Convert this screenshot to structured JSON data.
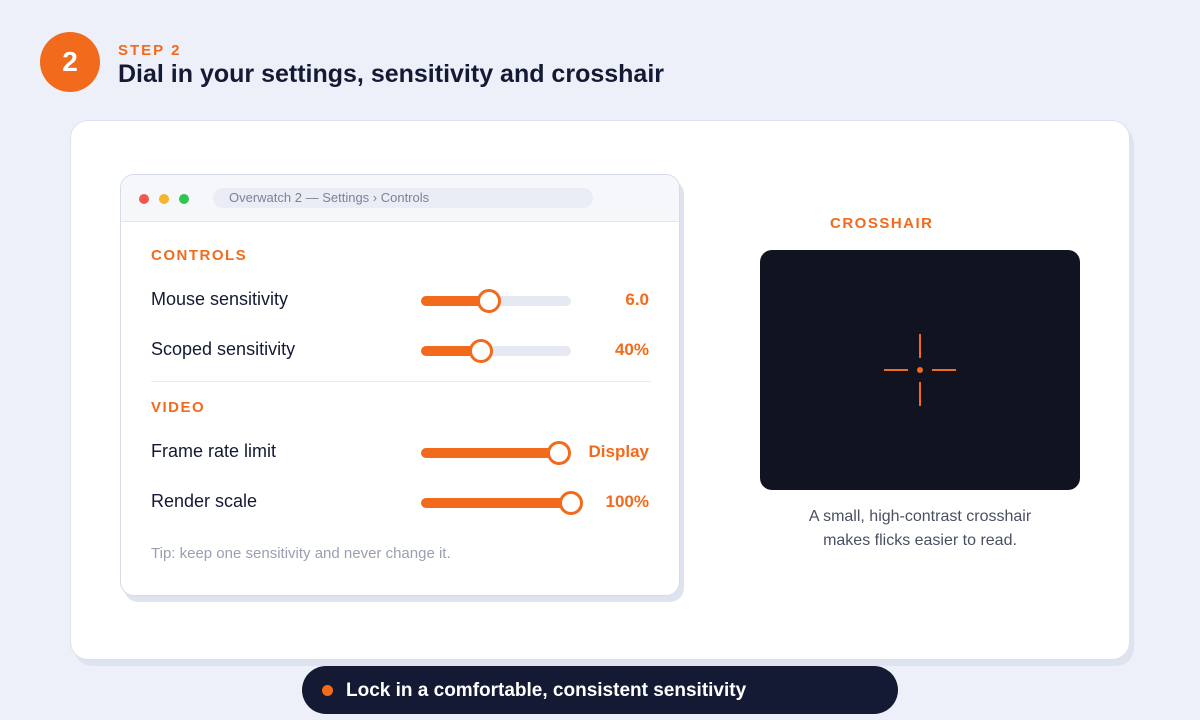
{
  "header": {
    "step_number": "2",
    "step_label": "STEP 2",
    "title": "Dial in your settings, sensitivity and crosshair"
  },
  "window": {
    "address": "Overwatch 2 — Settings › Controls",
    "sections": [
      {
        "label": "CONTROLS",
        "rows": [
          {
            "label": "Mouse sensitivity",
            "value": "6.0",
            "level": 0.45
          },
          {
            "label": "Scoped sensitivity",
            "value": "40%",
            "level": 0.4
          }
        ]
      },
      {
        "label": "VIDEO",
        "rows": [
          {
            "label": "Frame rate limit",
            "value": "Display",
            "level": 0.92
          },
          {
            "label": "Render scale",
            "value": "100%",
            "level": 1.0
          }
        ]
      }
    ],
    "tip": "Tip: keep one sensitivity and never change it."
  },
  "crosshair": {
    "label": "CROSSHAIR",
    "caption_line1": "A small, high-contrast crosshair",
    "caption_line2": "makes flicks easier to read.",
    "color": "#f26a1b",
    "background": "#111420"
  },
  "footer": {
    "text": "Lock in a comfortable, consistent sensitivity"
  },
  "colors": {
    "accent": "#f26a1b",
    "dark": "#141a33",
    "page_bg": "#edf0f8"
  }
}
